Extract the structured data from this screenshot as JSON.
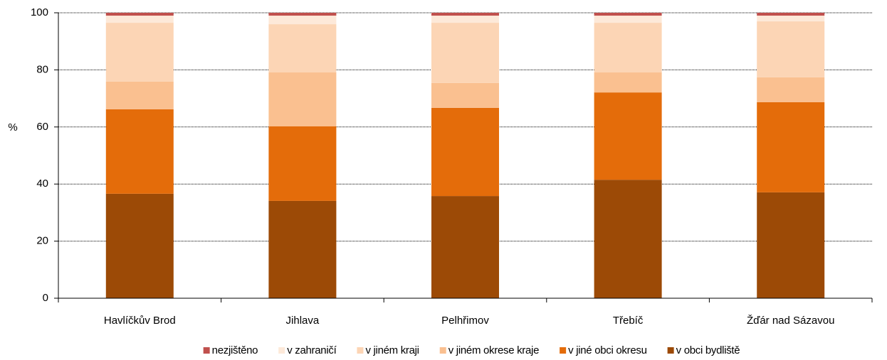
{
  "chart_data": {
    "type": "stacked_bar",
    "ylabel": "%",
    "categories": [
      "Havlíčkův Brod",
      "Jihlava",
      "Pelhřimov",
      "Třebíč",
      "Žďár nad Sázavou"
    ],
    "series": [
      {
        "name": "nezjištěno",
        "color": "#c0504d",
        "values": [
          1.0,
          1.0,
          1.0,
          1.0,
          1.0
        ]
      },
      {
        "name": "v zahraničí",
        "color": "#fde9d9",
        "values": [
          2.5,
          3.0,
          2.5,
          2.5,
          2.0
        ]
      },
      {
        "name": "v jiném kraji",
        "color": "#fcd5b5",
        "values": [
          20.6,
          16.9,
          21.1,
          17.4,
          19.6
        ]
      },
      {
        "name": "v jiném okrese kraje",
        "color": "#fac090",
        "values": [
          9.7,
          18.9,
          8.7,
          7.0,
          8.7
        ]
      },
      {
        "name": "v jiné obci okresu",
        "color": "#e46c0a",
        "values": [
          29.6,
          26.1,
          30.9,
          30.6,
          31.6
        ]
      },
      {
        "name": "v obci bydliště",
        "color": "#9c4a06",
        "values": [
          36.6,
          34.1,
          35.8,
          41.5,
          37.1
        ]
      }
    ],
    "ylim": [
      0,
      100
    ],
    "yticks": [
      0,
      20,
      40,
      60,
      80,
      100
    ],
    "grid": true,
    "legend": "bottom"
  }
}
